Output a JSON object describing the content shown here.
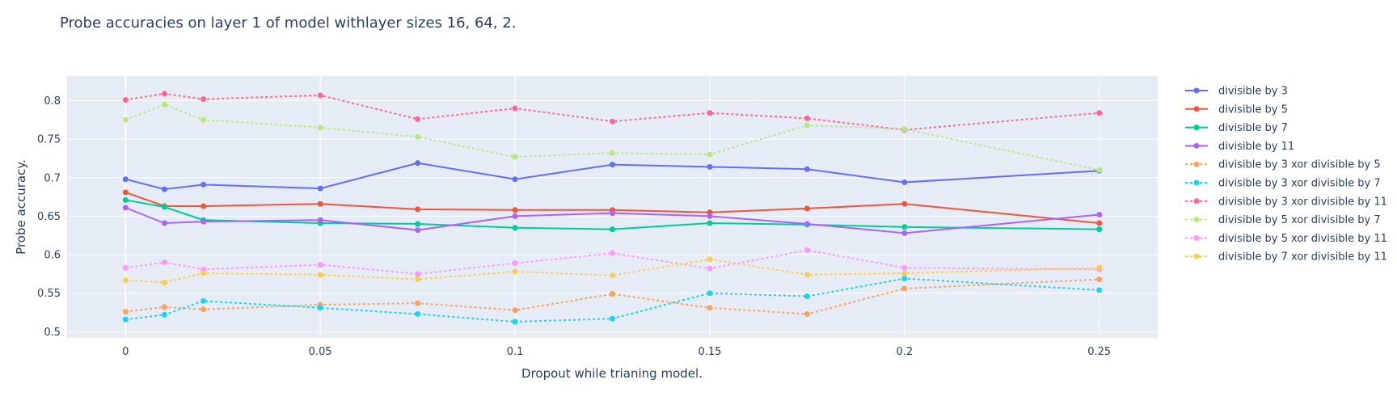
{
  "chart_data": {
    "type": "line",
    "title": "Probe accuracies on layer 1 of model withlayer sizes 16, 64, 2.",
    "xlabel": "Dropout while trianing model.",
    "ylabel": "Probe accuracy.",
    "xlim": [
      -0.015,
      0.265
    ],
    "ylim": [
      0.492,
      0.832
    ],
    "x_ticks": [
      0,
      0.05,
      0.1,
      0.15,
      0.2,
      0.25
    ],
    "x_tick_labels": [
      "0",
      "0.05",
      "0.1",
      "0.15",
      "0.2",
      "0.25"
    ],
    "y_ticks": [
      0.5,
      0.55,
      0.6,
      0.65,
      0.7,
      0.75,
      0.8
    ],
    "y_tick_labels": [
      "0.5",
      "0.55",
      "0.6",
      "0.65",
      "0.7",
      "0.75",
      "0.8"
    ],
    "grid": true,
    "legend_position": "right",
    "x": [
      0,
      0.01,
      0.02,
      0.05,
      0.075,
      0.1,
      0.125,
      0.15,
      0.175,
      0.2,
      0.25
    ],
    "series": [
      {
        "name": "divisible by 3",
        "color": "#636efa",
        "dash": "solid",
        "values": [
          0.698,
          0.685,
          0.691,
          0.686,
          0.719,
          0.698,
          0.717,
          0.714,
          0.711,
          0.694,
          0.709
        ]
      },
      {
        "name": "divisible by 5",
        "color": "#ef553b",
        "dash": "solid",
        "values": [
          0.681,
          0.663,
          0.663,
          0.666,
          0.659,
          0.658,
          0.658,
          0.655,
          0.66,
          0.666,
          0.641
        ]
      },
      {
        "name": "divisible by 7",
        "color": "#00cc96",
        "dash": "solid",
        "values": [
          0.671,
          0.662,
          0.645,
          0.641,
          0.64,
          0.635,
          0.633,
          0.641,
          0.639,
          0.636,
          0.633
        ]
      },
      {
        "name": "divisible by 11",
        "color": "#ab63fa",
        "dash": "solid",
        "values": [
          0.661,
          0.641,
          0.643,
          0.645,
          0.632,
          0.65,
          0.654,
          0.65,
          0.64,
          0.628,
          0.652
        ]
      },
      {
        "name": "divisible by 3 xor divisible by 5",
        "color": "#ffa15a",
        "dash": "dot",
        "values": [
          0.526,
          0.532,
          0.529,
          0.535,
          0.537,
          0.528,
          0.549,
          0.531,
          0.523,
          0.556,
          0.568
        ]
      },
      {
        "name": "divisible by 3 xor divisible by 7",
        "color": "#19d3f3",
        "dash": "dot",
        "values": [
          0.516,
          0.522,
          0.54,
          0.531,
          0.523,
          0.513,
          0.517,
          0.55,
          0.546,
          0.569,
          0.554
        ]
      },
      {
        "name": "divisible by 3 xor divisible by 11",
        "color": "#ff6692",
        "dash": "dot",
        "values": [
          0.801,
          0.809,
          0.802,
          0.807,
          0.776,
          0.79,
          0.773,
          0.784,
          0.777,
          0.762,
          0.784
        ]
      },
      {
        "name": "divisible by 5 xor divisible by 7",
        "color": "#b6e880",
        "dash": "dot",
        "values": [
          0.775,
          0.795,
          0.775,
          0.765,
          0.753,
          0.727,
          0.732,
          0.73,
          0.768,
          0.763,
          0.71
        ]
      },
      {
        "name": "divisible by 5 xor divisible by 11",
        "color": "#ff97ff",
        "dash": "dot",
        "values": [
          0.583,
          0.59,
          0.581,
          0.587,
          0.575,
          0.589,
          0.602,
          0.582,
          0.606,
          0.583,
          0.581
        ]
      },
      {
        "name": "divisible by 7 xor divisible by 11",
        "color": "#fecb52",
        "dash": "dot",
        "values": [
          0.567,
          0.564,
          0.576,
          0.574,
          0.568,
          0.578,
          0.573,
          0.594,
          0.574,
          0.576,
          0.583
        ]
      }
    ]
  }
}
